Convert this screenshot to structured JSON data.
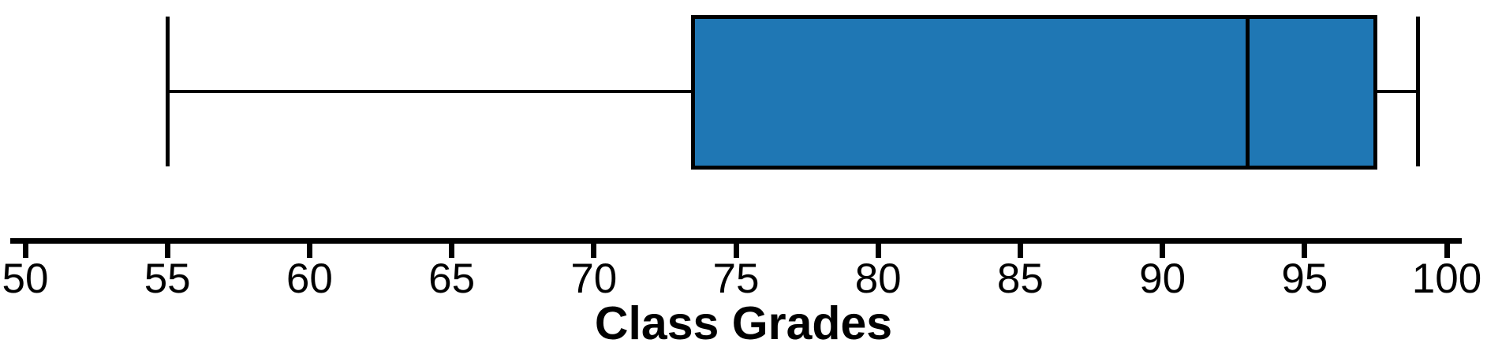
{
  "chart_data": {
    "type": "boxplot",
    "orientation": "horizontal",
    "title": "",
    "xlabel": "Class Grades",
    "ylabel": "",
    "xlim": [
      50,
      100
    ],
    "xticks": [
      50,
      55,
      60,
      65,
      70,
      75,
      80,
      85,
      90,
      95,
      100
    ],
    "grid": false,
    "legend": false,
    "series": [
      {
        "name": "Class Grades",
        "min": 55,
        "q1": 73.5,
        "median": 93,
        "q3": 97.5,
        "max": 99,
        "outliers": []
      }
    ],
    "colors": {
      "box_fill": "#1f77b4",
      "line": "#000000",
      "text": "#000000",
      "background": "#ffffff"
    }
  }
}
